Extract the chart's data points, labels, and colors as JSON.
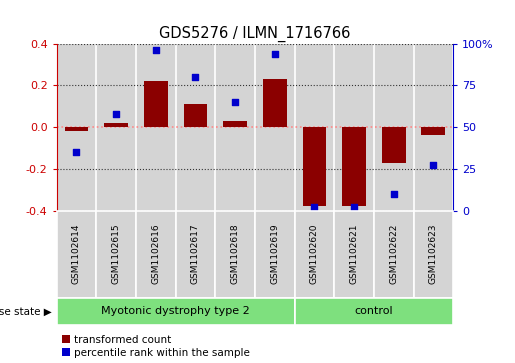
{
  "title": "GDS5276 / ILMN_1716766",
  "samples": [
    "GSM1102614",
    "GSM1102615",
    "GSM1102616",
    "GSM1102617",
    "GSM1102618",
    "GSM1102619",
    "GSM1102620",
    "GSM1102621",
    "GSM1102622",
    "GSM1102623"
  ],
  "red_values": [
    -0.02,
    0.02,
    0.22,
    0.11,
    0.03,
    0.23,
    -0.38,
    -0.38,
    -0.17,
    -0.04
  ],
  "blue_values": [
    35,
    58,
    96,
    80,
    65,
    94,
    2,
    2,
    10,
    27
  ],
  "groups": [
    {
      "label": "Myotonic dystrophy type 2",
      "start": 0,
      "end": 5
    },
    {
      "label": "control",
      "start": 6,
      "end": 9
    }
  ],
  "ylim_left": [
    -0.4,
    0.4
  ],
  "ylim_right": [
    0,
    100
  ],
  "left_ticks": [
    -0.4,
    -0.2,
    0.0,
    0.2,
    0.4
  ],
  "right_ticks": [
    0,
    25,
    50,
    75,
    100
  ],
  "right_tick_labels": [
    "0",
    "25",
    "50",
    "75",
    "100%"
  ],
  "bar_color": "#8B0000",
  "dot_color": "#0000CC",
  "background_color": "#ffffff",
  "col_bg_color": "#d4d4d4",
  "group_color": "#7EE07E",
  "zero_line_color": "#FF8888",
  "grid_color": "#333333",
  "legend_red_label": "transformed count",
  "legend_blue_label": "percentile rank within the sample",
  "disease_state_label": "disease state"
}
